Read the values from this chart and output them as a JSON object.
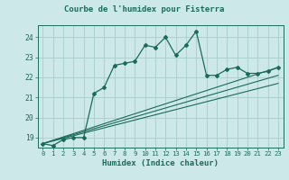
{
  "title": "Courbe de l'humidex pour Fisterra",
  "xlabel": "Humidex (Indice chaleur)",
  "ylabel": "",
  "bg_color": "#cce8e8",
  "grid_color": "#aacccc",
  "line_color": "#1a6b5a",
  "xlim": [
    -0.5,
    23.5
  ],
  "ylim": [
    18.5,
    24.6
  ],
  "yticks": [
    19,
    20,
    21,
    22,
    23,
    24
  ],
  "xticks": [
    0,
    1,
    2,
    3,
    4,
    5,
    6,
    7,
    8,
    9,
    10,
    11,
    12,
    13,
    14,
    15,
    16,
    17,
    18,
    19,
    20,
    21,
    22,
    23
  ],
  "series": [
    {
      "x": [
        0,
        1,
        2,
        3,
        4,
        5,
        6,
        7,
        8,
        9,
        10,
        11,
        12,
        13,
        14,
        15,
        16,
        17,
        18,
        19,
        20,
        21,
        22,
        23
      ],
      "y": [
        18.7,
        18.6,
        18.9,
        19.0,
        19.0,
        21.2,
        21.5,
        22.6,
        22.7,
        22.8,
        23.6,
        23.5,
        24.0,
        23.1,
        23.6,
        24.3,
        22.1,
        22.1,
        22.4,
        22.5,
        22.2,
        22.2,
        22.3,
        22.5
      ],
      "marker": "D",
      "markersize": 2.0,
      "linewidth": 0.9,
      "has_markers": true
    },
    {
      "x": [
        0,
        23
      ],
      "y": [
        18.7,
        22.5
      ],
      "marker": null,
      "linewidth": 0.8,
      "has_markers": false
    },
    {
      "x": [
        0,
        23
      ],
      "y": [
        18.7,
        22.1
      ],
      "marker": null,
      "linewidth": 0.8,
      "has_markers": false
    },
    {
      "x": [
        0,
        23
      ],
      "y": [
        18.7,
        21.7
      ],
      "marker": null,
      "linewidth": 0.8,
      "has_markers": false
    }
  ]
}
